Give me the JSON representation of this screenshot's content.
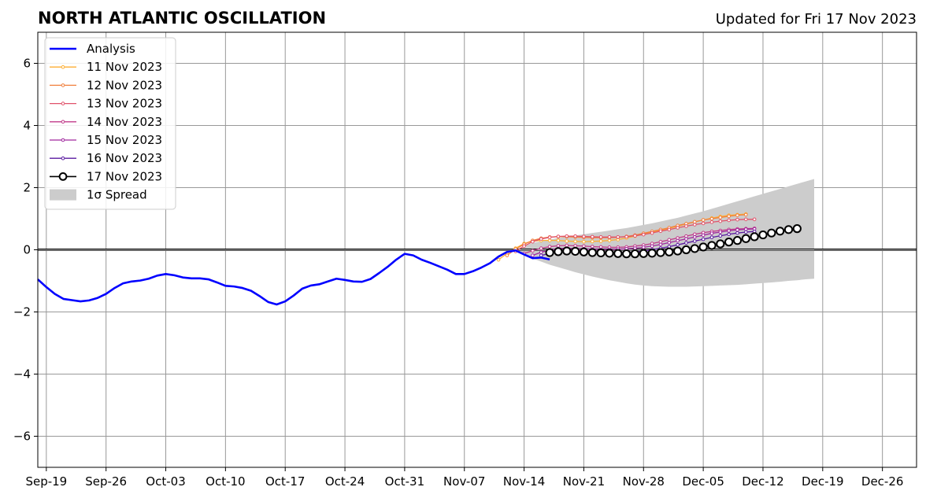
{
  "chart_data": {
    "type": "line",
    "title": "NORTH ATLANTIC OSCILLATION",
    "subtitle": "Updated for Fri 17 Nov 2023",
    "xlabel": "",
    "ylabel": "",
    "x_range": [
      "2023-09-18",
      "2023-12-30"
    ],
    "ylim": [
      -7,
      7
    ],
    "x_ticks": [
      {
        "date": "2023-09-19",
        "label": "Sep-19"
      },
      {
        "date": "2023-09-26",
        "label": "Sep-26"
      },
      {
        "date": "2023-10-03",
        "label": "Oct-03"
      },
      {
        "date": "2023-10-10",
        "label": "Oct-10"
      },
      {
        "date": "2023-10-17",
        "label": "Oct-17"
      },
      {
        "date": "2023-10-24",
        "label": "Oct-24"
      },
      {
        "date": "2023-10-31",
        "label": "Oct-31"
      },
      {
        "date": "2023-11-07",
        "label": "Nov-07"
      },
      {
        "date": "2023-11-14",
        "label": "Nov-14"
      },
      {
        "date": "2023-11-21",
        "label": "Nov-21"
      },
      {
        "date": "2023-11-28",
        "label": "Nov-28"
      },
      {
        "date": "2023-12-05",
        "label": "Dec-05"
      },
      {
        "date": "2023-12-12",
        "label": "Dec-12"
      },
      {
        "date": "2023-12-19",
        "label": "Dec-19"
      },
      {
        "date": "2023-12-26",
        "label": "Dec-26"
      }
    ],
    "y_ticks": [
      {
        "value": -6,
        "label": "−6"
      },
      {
        "value": -4,
        "label": "−4"
      },
      {
        "value": -2,
        "label": "−2"
      },
      {
        "value": 0,
        "label": "0"
      },
      {
        "value": 2,
        "label": "2"
      },
      {
        "value": 4,
        "label": "4"
      },
      {
        "value": 6,
        "label": "6"
      }
    ],
    "grid": true,
    "zero_line": true,
    "legend_position": "top-left",
    "analysis": {
      "name": "Analysis",
      "color": "#0000ff",
      "start_date": "2023-09-18",
      "values": [
        -0.95,
        -1.2,
        -1.42,
        -1.58,
        -1.62,
        -1.66,
        -1.63,
        -1.55,
        -1.42,
        -1.23,
        -1.08,
        -1.02,
        -0.99,
        -0.93,
        -0.83,
        -0.78,
        -0.82,
        -0.89,
        -0.92,
        -0.92,
        -0.95,
        -1.05,
        -1.16,
        -1.18,
        -1.23,
        -1.32,
        -1.49,
        -1.68,
        -1.76,
        -1.66,
        -1.47,
        -1.25,
        -1.15,
        -1.11,
        -1.02,
        -0.93,
        -0.97,
        -1.02,
        -1.03,
        -0.94,
        -0.75,
        -0.55,
        -0.32,
        -0.13,
        -0.18,
        -0.32,
        -0.42,
        -0.53,
        -0.64,
        -0.78,
        -0.78,
        -0.69,
        -0.57,
        -0.43,
        -0.22,
        -0.07,
        -0.02,
        -0.15,
        -0.27,
        -0.25,
        -0.31
      ]
    },
    "forecasts": [
      {
        "name": "11 Nov 2023",
        "color": "#fdae33",
        "start_date": "2023-11-11",
        "values": [
          -0.32,
          -0.12,
          0.05,
          0.2,
          0.28,
          0.3,
          0.3,
          0.3,
          0.28,
          0.27,
          0.26,
          0.27,
          0.28,
          0.3,
          0.33,
          0.38,
          0.44,
          0.5,
          0.57,
          0.63,
          0.69,
          0.76,
          0.83,
          0.9,
          0.96,
          1.02,
          1.07,
          1.11,
          1.13,
          1.15
        ]
      },
      {
        "name": "12 Nov 2023",
        "color": "#f07f3c",
        "start_date": "2023-11-12",
        "values": [
          -0.18,
          0.02,
          0.18,
          0.3,
          0.37,
          0.41,
          0.42,
          0.42,
          0.41,
          0.4,
          0.39,
          0.39,
          0.39,
          0.4,
          0.43,
          0.47,
          0.53,
          0.59,
          0.65,
          0.71,
          0.78,
          0.84,
          0.9,
          0.96,
          1.0,
          1.04,
          1.08,
          1.11,
          1.13
        ]
      },
      {
        "name": "13 Nov 2023",
        "color": "#e0526a",
        "start_date": "2023-11-13",
        "values": [
          -0.05,
          0.12,
          0.26,
          0.35,
          0.4,
          0.43,
          0.44,
          0.44,
          0.43,
          0.42,
          0.41,
          0.41,
          0.41,
          0.42,
          0.45,
          0.49,
          0.54,
          0.6,
          0.65,
          0.71,
          0.76,
          0.81,
          0.85,
          0.89,
          0.92,
          0.95,
          0.97,
          0.98,
          0.98
        ]
      },
      {
        "name": "14 Nov 2023",
        "color": "#c03a8a",
        "start_date": "2023-11-14",
        "values": [
          -0.12,
          -0.03,
          0.05,
          0.1,
          0.13,
          0.14,
          0.13,
          0.12,
          0.1,
          0.09,
          0.08,
          0.08,
          0.09,
          0.12,
          0.15,
          0.2,
          0.26,
          0.32,
          0.38,
          0.44,
          0.5,
          0.55,
          0.59,
          0.62,
          0.65,
          0.67,
          0.68,
          0.69
        ]
      },
      {
        "name": "15 Nov 2023",
        "color": "#a0289e",
        "start_date": "2023-11-15",
        "values": [
          -0.18,
          -0.08,
          0.0,
          0.04,
          0.05,
          0.04,
          0.03,
          0.02,
          0.01,
          0.01,
          0.02,
          0.03,
          0.05,
          0.08,
          0.12,
          0.17,
          0.23,
          0.29,
          0.35,
          0.41,
          0.47,
          0.53,
          0.57,
          0.61,
          0.64,
          0.66,
          0.67
        ]
      },
      {
        "name": "16 Nov 2023",
        "color": "#5a1aa0",
        "start_date": "2023-11-16",
        "values": [
          -0.18,
          -0.12,
          -0.08,
          -0.06,
          -0.06,
          -0.07,
          -0.08,
          -0.09,
          -0.1,
          -0.1,
          -0.09,
          -0.07,
          -0.04,
          0.0,
          0.05,
          0.1,
          0.16,
          0.22,
          0.28,
          0.34,
          0.4,
          0.45,
          0.5,
          0.54,
          0.57,
          0.59
        ]
      },
      {
        "name": "17 Nov 2023",
        "color": "#000000",
        "start_date": "2023-11-17",
        "values": [
          -0.09,
          -0.06,
          -0.04,
          -0.05,
          -0.07,
          -0.09,
          -0.1,
          -0.11,
          -0.12,
          -0.13,
          -0.13,
          -0.12,
          -0.11,
          -0.09,
          -0.07,
          -0.04,
          0.0,
          0.04,
          0.09,
          0.14,
          0.19,
          0.25,
          0.3,
          0.36,
          0.42,
          0.48,
          0.54,
          0.6,
          0.65,
          0.68
        ]
      }
    ],
    "spread": {
      "name": "1σ Spread",
      "color": "#cccccc",
      "start_date": "2023-11-13",
      "upper": [
        0.0,
        0.12,
        0.22,
        0.28,
        0.33,
        0.38,
        0.42,
        0.46,
        0.5,
        0.54,
        0.58,
        0.62,
        0.66,
        0.7,
        0.75,
        0.8,
        0.85,
        0.91,
        0.97,
        1.03,
        1.1,
        1.17,
        1.24,
        1.32,
        1.4,
        1.48,
        1.56,
        1.64,
        1.72,
        1.8,
        1.88,
        1.96,
        2.04,
        2.12,
        2.2,
        2.28
      ],
      "lower": [
        0.0,
        -0.15,
        -0.28,
        -0.38,
        -0.48,
        -0.56,
        -0.64,
        -0.72,
        -0.79,
        -0.86,
        -0.92,
        -0.98,
        -1.03,
        -1.08,
        -1.12,
        -1.15,
        -1.17,
        -1.18,
        -1.19,
        -1.19,
        -1.19,
        -1.18,
        -1.17,
        -1.16,
        -1.15,
        -1.14,
        -1.13,
        -1.11,
        -1.09,
        -1.07,
        -1.05,
        -1.03,
        -1.0,
        -0.98,
        -0.95,
        -0.93
      ]
    },
    "legend": [
      {
        "label": "Analysis"
      },
      {
        "label": "11 Nov 2023"
      },
      {
        "label": "12 Nov 2023"
      },
      {
        "label": "13 Nov 2023"
      },
      {
        "label": "14 Nov 2023"
      },
      {
        "label": "15 Nov 2023"
      },
      {
        "label": "16 Nov 2023"
      },
      {
        "label": "17 Nov 2023"
      },
      {
        "label": "1σ Spread"
      }
    ]
  }
}
